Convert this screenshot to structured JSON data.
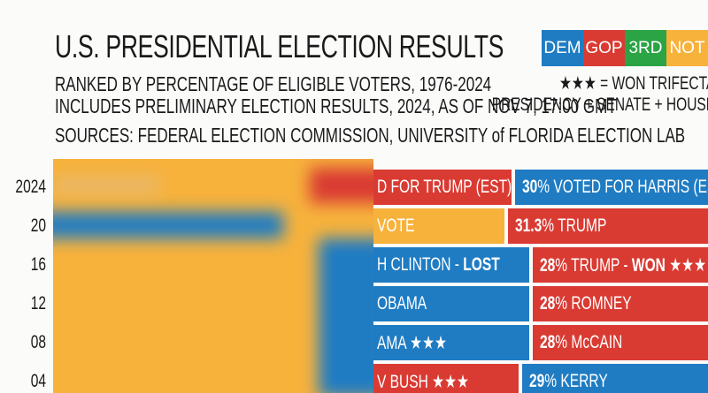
{
  "header": {
    "title": "U.S. PRESIDENTIAL ELECTION RESULTS",
    "subtitle_lines": [
      "RANKED BY PERCENTAGE OF ELIGIBLE VOTERS, 1976-2024",
      "INCLUDES PRELIMINARY ELECTION RESULTS, 2024, AS OF NOV 7, 17:00 GMT",
      "SOURCES: FEDERAL ELECTION COMMISSION, UNIVERSITY of FLORIDA ELECTION LAB"
    ]
  },
  "legend": {
    "items": [
      {
        "label": "DEM",
        "color": "#1f7cc3"
      },
      {
        "label": "GOP",
        "color": "#d93b33"
      },
      {
        "label": "3RD",
        "color": "#2aa445"
      },
      {
        "label": "NOT",
        "color": "#f7b23c"
      }
    ],
    "trifecta_key": [
      "★★★ = WON TRIFECTA",
      "PRESIDENCY + SENATE + HOUSE"
    ]
  },
  "rows": [
    {
      "year": "2024",
      "segments": [
        {
          "color": "#d93b33",
          "runs": [
            {
              "text": "D FOR TRUMP (EST)"
            }
          ]
        },
        {
          "color": "#1f7cc3",
          "runs": [
            {
              "text": "30",
              "bold": true
            },
            {
              "text": "% VOTED FOR HARRIS (EST)"
            }
          ]
        }
      ]
    },
    {
      "year": "20",
      "segments": [
        {
          "color": "#f7b23c",
          "runs": [
            {
              "text": "VOTE"
            }
          ]
        },
        {
          "color": "#d93b33",
          "runs": [
            {
              "text": "31.3",
              "bold": true
            },
            {
              "text": "% TRUMP"
            }
          ]
        }
      ]
    },
    {
      "year": "16",
      "segments": [
        {
          "color": "#1f7cc3",
          "runs": [
            {
              "text": "H CLINTON - "
            },
            {
              "text": "LOST",
              "bold": true
            }
          ]
        },
        {
          "color": "#d93b33",
          "runs": [
            {
              "text": "28",
              "bold": true
            },
            {
              "text": "% TRUMP - "
            },
            {
              "text": "WON",
              "bold": true
            },
            {
              "text": " ★★★"
            }
          ]
        }
      ]
    },
    {
      "year": "12",
      "segments": [
        {
          "color": "#1f7cc3",
          "runs": [
            {
              "text": "OBAMA"
            }
          ]
        },
        {
          "color": "#d93b33",
          "runs": [
            {
              "text": "28",
              "bold": true
            },
            {
              "text": "% ROMNEY"
            }
          ]
        }
      ]
    },
    {
      "year": "08",
      "segments": [
        {
          "color": "#1f7cc3",
          "runs": [
            {
              "text": "AMA ★★★"
            }
          ]
        },
        {
          "color": "#d93b33",
          "runs": [
            {
              "text": "28",
              "bold": true
            },
            {
              "text": "% McCAIN"
            }
          ]
        }
      ]
    },
    {
      "year": "04",
      "segments": [
        {
          "color": "#d93b33",
          "runs": [
            {
              "text": "V BUSH ★★★"
            }
          ]
        },
        {
          "color": "#1f7cc3",
          "runs": [
            {
              "text": "29",
              "bold": true
            },
            {
              "text": "% KERRY"
            }
          ]
        }
      ]
    }
  ]
}
